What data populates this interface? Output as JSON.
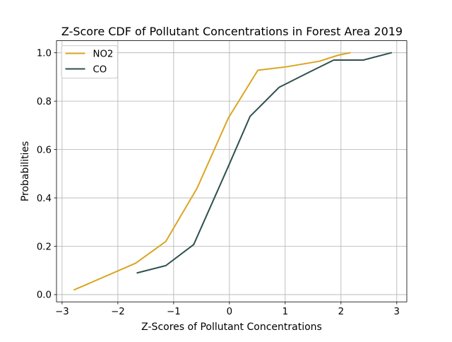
{
  "chart_data": {
    "type": "line",
    "title": "Z-Score CDF of Pollutant Concentrations in Forest Area 2019",
    "xlabel": "Z-Scores of Pollutant Concentrations",
    "ylabel": "Probabilities",
    "xlim": [
      -3.1,
      3.18
    ],
    "ylim": [
      -0.03,
      1.05
    ],
    "xticks": [
      -3,
      -2,
      -1,
      0,
      1,
      2,
      3
    ],
    "xtick_labels": [
      "−3",
      "−2",
      "−1",
      "0",
      "1",
      "2",
      "3"
    ],
    "yticks": [
      0.0,
      0.2,
      0.4,
      0.6,
      0.8,
      1.0
    ],
    "ytick_labels": [
      "0.0",
      "0.2",
      "0.4",
      "0.6",
      "0.8",
      "1.0"
    ],
    "grid": true,
    "legend_position": "top-left",
    "series": [
      {
        "name": "NO2",
        "color": "#DAA520",
        "x": [
          -2.78,
          -1.68,
          -1.14,
          -0.58,
          -0.02,
          0.51,
          1.02,
          1.61,
          1.95,
          2.16
        ],
        "y": [
          0.02,
          0.13,
          0.22,
          0.44,
          0.73,
          0.928,
          0.942,
          0.965,
          0.99,
          1.0
        ]
      },
      {
        "name": "CO",
        "color": "#2F4F4F",
        "x": [
          -1.65,
          -1.14,
          -0.64,
          -0.02,
          0.37,
          0.89,
          1.43,
          1.87,
          2.4,
          2.9
        ],
        "y": [
          0.09,
          0.12,
          0.207,
          0.53,
          0.737,
          0.857,
          0.92,
          0.97,
          0.97,
          1.0
        ]
      }
    ]
  }
}
